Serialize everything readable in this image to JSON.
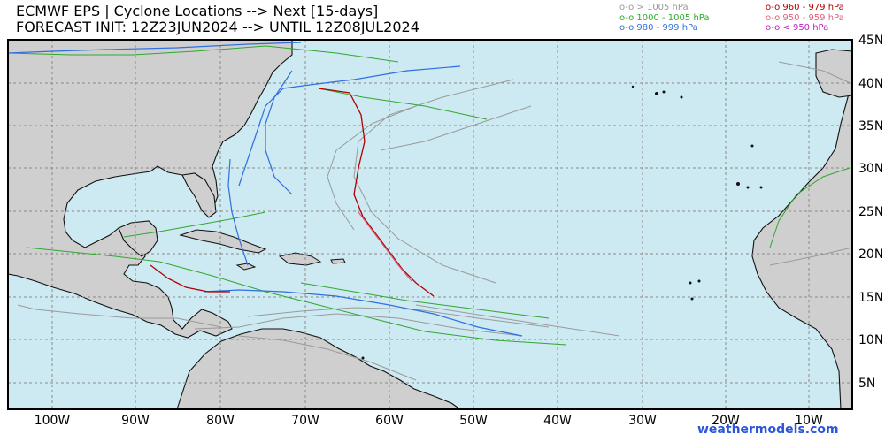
{
  "header": {
    "title_line1": "ECMWF EPS | Cyclone Locations --> Next [15-days]",
    "title_line2": "FORECAST INIT: 12Z23JUN2024 --> UNTIL 12Z08JUL2024"
  },
  "legend": {
    "left": [
      {
        "label": "o-o > 1005 hPa",
        "color": "#9a9a9a"
      },
      {
        "label": "o-o 1000 - 1005 hPa",
        "color": "#2fa82f"
      },
      {
        "label": "o-o 980 - 999 hPa",
        "color": "#2f6fe0"
      }
    ],
    "right": [
      {
        "label": "o-o 960 - 979 hPa",
        "color": "#b00000"
      },
      {
        "label": "o-o 950 - 959 hPa",
        "color": "#e0607a"
      },
      {
        "label": "o-o < 950 hPa",
        "color": "#c020c0"
      }
    ]
  },
  "map": {
    "ocean_color": "#cde9f2",
    "land_color": "#cfcfcf",
    "lat_labels": [
      "45N",
      "40N",
      "35N",
      "30N",
      "25N",
      "20N",
      "15N",
      "10N",
      "5N"
    ],
    "lon_labels": [
      "100W",
      "90W",
      "80W",
      "70W",
      "60W",
      "50W",
      "40W",
      "30W",
      "20W",
      "10W"
    ],
    "extent": {
      "lon_min": -105,
      "lon_max": -5,
      "lat_min": 1.5,
      "lat_max": 45
    }
  },
  "footer": {
    "brand": "weathermodels.com"
  }
}
